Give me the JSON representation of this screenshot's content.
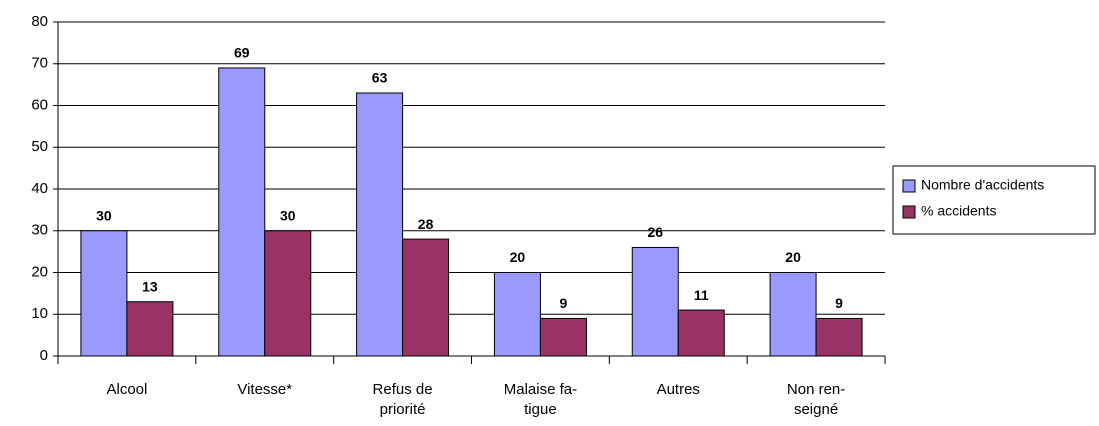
{
  "chart_data": {
    "type": "bar",
    "categories": [
      "Alcool",
      "Vitesse*",
      "Refus de\npriorité",
      "Malaise fa-\ntigue",
      "Autres",
      "Non ren-\nseigné"
    ],
    "series": [
      {
        "name": "Nombre d'accidents",
        "color": "#9999ff",
        "values": [
          30,
          69,
          63,
          20,
          26,
          20
        ]
      },
      {
        "name": "% accidents",
        "color": "#993366",
        "values": [
          13,
          30,
          28,
          9,
          11,
          9
        ]
      }
    ],
    "ylim": [
      0,
      80
    ],
    "yticks": [
      0,
      10,
      20,
      30,
      40,
      50,
      60,
      70,
      80
    ],
    "grid": true,
    "legend": "right"
  }
}
